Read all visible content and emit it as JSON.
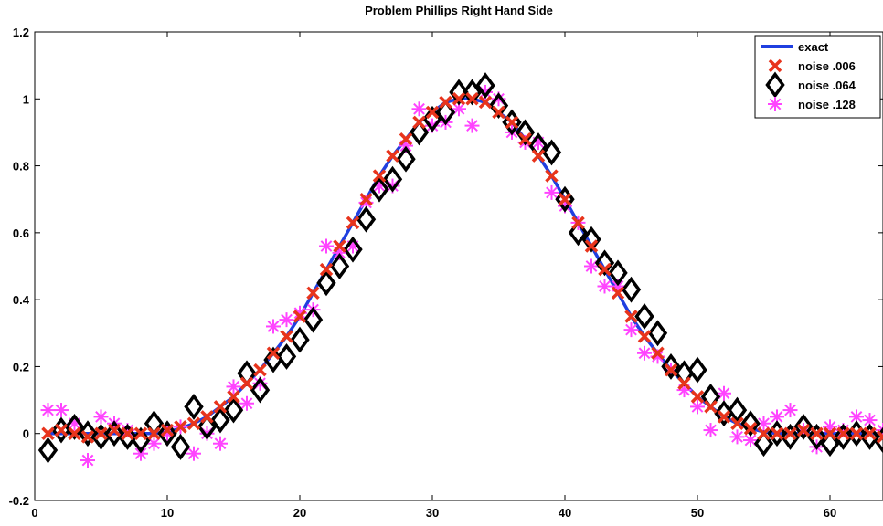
{
  "chart_data": {
    "type": "scatter",
    "title": "Problem Phillips Right Hand Side",
    "xlabel": "",
    "ylabel": "",
    "xlim": [
      0,
      64
    ],
    "ylim": [
      -0.2,
      1.2
    ],
    "xticks": [
      0,
      10,
      20,
      30,
      40,
      50,
      60
    ],
    "yticks": [
      -0.2,
      0,
      0.2,
      0.4,
      0.6,
      0.8,
      1,
      1.2
    ],
    "ytick_labels": [
      "-0.2",
      "0",
      "0.2",
      "0.4",
      "0.6",
      "0.8",
      "1",
      "1.2"
    ],
    "grid": false,
    "legend_position": "top-right",
    "series": [
      {
        "name": "exact",
        "kind": "line",
        "color": "#1f3fe0",
        "x": [
          1,
          2,
          3,
          4,
          5,
          6,
          7,
          8,
          9,
          10,
          11,
          12,
          13,
          14,
          15,
          16,
          17,
          18,
          19,
          20,
          21,
          22,
          23,
          24,
          25,
          26,
          27,
          28,
          29,
          30,
          31,
          32,
          33,
          34,
          35,
          36,
          37,
          38,
          39,
          40,
          41,
          42,
          43,
          44,
          45,
          46,
          47,
          48,
          49,
          50,
          51,
          52,
          53,
          54,
          55,
          56,
          57,
          58,
          59,
          60,
          61,
          62,
          63,
          64
        ],
        "y": [
          0,
          0,
          0,
          0,
          0,
          0,
          0,
          0,
          0,
          0.005,
          0.015,
          0.03,
          0.05,
          0.08,
          0.11,
          0.15,
          0.19,
          0.24,
          0.29,
          0.35,
          0.42,
          0.49,
          0.56,
          0.63,
          0.7,
          0.77,
          0.83,
          0.88,
          0.93,
          0.96,
          0.99,
          1.0,
          1.0,
          0.99,
          0.96,
          0.93,
          0.88,
          0.83,
          0.77,
          0.7,
          0.63,
          0.56,
          0.49,
          0.42,
          0.35,
          0.29,
          0.24,
          0.19,
          0.15,
          0.11,
          0.08,
          0.05,
          0.03,
          0.015,
          0.005,
          0,
          0,
          0,
          0,
          0,
          0,
          0,
          0,
          0
        ]
      },
      {
        "name": "noise .006",
        "kind": "x-marker",
        "color": "#e8341c",
        "x": [
          1,
          2,
          3,
          4,
          5,
          6,
          7,
          8,
          9,
          10,
          11,
          12,
          13,
          14,
          15,
          16,
          17,
          18,
          19,
          20,
          21,
          22,
          23,
          24,
          25,
          26,
          27,
          28,
          29,
          30,
          31,
          32,
          33,
          34,
          35,
          36,
          37,
          38,
          39,
          40,
          41,
          42,
          43,
          44,
          45,
          46,
          47,
          48,
          49,
          50,
          51,
          52,
          53,
          54,
          55,
          56,
          57,
          58,
          59,
          60,
          61,
          62,
          63,
          64
        ],
        "y": [
          0,
          0.01,
          0,
          -0.01,
          0,
          0.01,
          0,
          0,
          0,
          0.01,
          0.02,
          0.03,
          0.05,
          0.08,
          0.11,
          0.15,
          0.19,
          0.24,
          0.29,
          0.35,
          0.42,
          0.49,
          0.56,
          0.63,
          0.7,
          0.77,
          0.83,
          0.88,
          0.93,
          0.96,
          0.99,
          1.0,
          1.0,
          0.99,
          0.96,
          0.93,
          0.88,
          0.83,
          0.77,
          0.7,
          0.63,
          0.56,
          0.49,
          0.42,
          0.35,
          0.29,
          0.24,
          0.19,
          0.15,
          0.11,
          0.08,
          0.05,
          0.03,
          0.015,
          0,
          0,
          0,
          0.01,
          0,
          0,
          0,
          0,
          0,
          -0.01
        ]
      },
      {
        "name": "noise .064",
        "kind": "diamond",
        "color": "#000000",
        "x": [
          1,
          2,
          3,
          4,
          5,
          6,
          7,
          8,
          9,
          10,
          11,
          12,
          13,
          14,
          15,
          16,
          17,
          18,
          19,
          20,
          21,
          22,
          23,
          24,
          25,
          26,
          27,
          28,
          29,
          30,
          31,
          32,
          33,
          34,
          35,
          36,
          37,
          38,
          39,
          40,
          41,
          42,
          43,
          44,
          45,
          46,
          47,
          48,
          49,
          50,
          51,
          52,
          53,
          54,
          55,
          56,
          57,
          58,
          59,
          60,
          61,
          62,
          63,
          64
        ],
        "y": [
          -0.05,
          0.01,
          0.02,
          0,
          -0.01,
          0,
          -0.01,
          -0.02,
          0.03,
          0,
          -0.04,
          0.08,
          0.02,
          0.04,
          0.07,
          0.18,
          0.13,
          0.22,
          0.23,
          0.28,
          0.34,
          0.45,
          0.5,
          0.55,
          0.64,
          0.73,
          0.76,
          0.82,
          0.9,
          0.94,
          0.96,
          1.02,
          1.02,
          1.04,
          0.98,
          0.93,
          0.9,
          0.86,
          0.84,
          0.7,
          0.6,
          0.58,
          0.51,
          0.48,
          0.43,
          0.35,
          0.3,
          0.2,
          0.18,
          0.19,
          0.11,
          0.06,
          0.07,
          0.03,
          -0.03,
          0,
          -0.01,
          0.02,
          -0.01,
          -0.03,
          -0.01,
          0,
          -0.01,
          -0.02
        ]
      },
      {
        "name": "noise .128",
        "kind": "asterisk",
        "color": "#ff44ff",
        "x": [
          1,
          2,
          3,
          4,
          5,
          6,
          7,
          8,
          9,
          10,
          11,
          12,
          13,
          14,
          15,
          16,
          17,
          18,
          19,
          20,
          21,
          22,
          23,
          24,
          25,
          26,
          27,
          28,
          29,
          30,
          31,
          32,
          33,
          34,
          35,
          36,
          37,
          38,
          39,
          40,
          41,
          42,
          43,
          44,
          45,
          46,
          47,
          48,
          49,
          50,
          51,
          52,
          53,
          54,
          55,
          56,
          57,
          58,
          59,
          60,
          61,
          62,
          63,
          64
        ],
        "y": [
          0.07,
          0.07,
          0.03,
          -0.08,
          0.05,
          0.03,
          0.01,
          -0.06,
          -0.03,
          0,
          0.02,
          -0.06,
          0,
          -0.03,
          0.14,
          0.09,
          0.15,
          0.32,
          0.34,
          0.36,
          0.37,
          0.56,
          0.54,
          0.56,
          0.69,
          0.74,
          0.74,
          0.86,
          0.97,
          0.92,
          0.93,
          0.97,
          0.92,
          1.02,
          1.0,
          0.9,
          0.87,
          0.87,
          0.72,
          0.68,
          0.63,
          0.5,
          0.44,
          0.44,
          0.31,
          0.24,
          0.23,
          0.19,
          0.13,
          0.08,
          0.01,
          0.12,
          -0.01,
          -0.02,
          0.03,
          0.05,
          0.07,
          0.01,
          -0.04,
          0.02,
          0.01,
          0.05,
          0.04,
          0.01
        ]
      }
    ]
  }
}
